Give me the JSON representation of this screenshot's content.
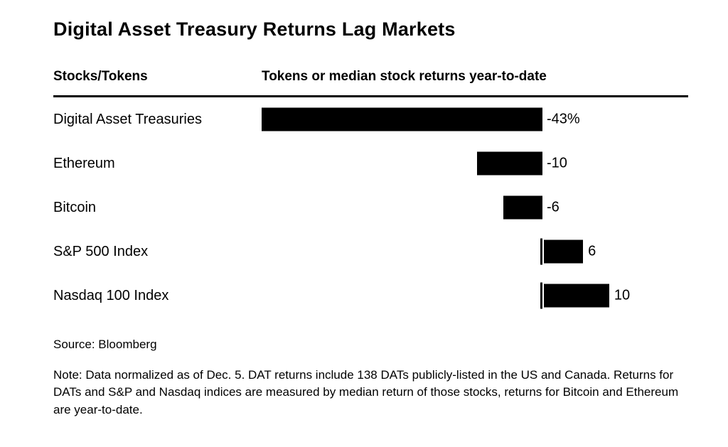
{
  "chart_data": {
    "type": "bar",
    "orientation": "horizontal",
    "title": "Digital Asset Treasury Returns Lag Markets",
    "column_headers": {
      "left": "Stocks/Tokens",
      "right": "Tokens or median stock returns year-to-date"
    },
    "categories": [
      "Digital Asset Treasuries",
      "Ethereum",
      "Bitcoin",
      "S&P 500 Index",
      "Nasdaq 100 Index"
    ],
    "values": [
      -43,
      -10,
      -6,
      6,
      10
    ],
    "value_labels": [
      "-43%",
      "-10",
      "-6",
      "6",
      "10"
    ],
    "xlim": [
      -43,
      22
    ],
    "bar_color": "#000000",
    "grid": false,
    "legend": "none"
  },
  "footer": {
    "source": "Source: Bloomberg",
    "note": "Note: Data normalized as of Dec. 5. DAT returns include 138 DATs publicly-listed in the US and Canada. Returns for DATs and S&P and Nasdaq indices are measured by median return of those stocks, returns for Bitcoin and Ethereum are year-to-date."
  }
}
